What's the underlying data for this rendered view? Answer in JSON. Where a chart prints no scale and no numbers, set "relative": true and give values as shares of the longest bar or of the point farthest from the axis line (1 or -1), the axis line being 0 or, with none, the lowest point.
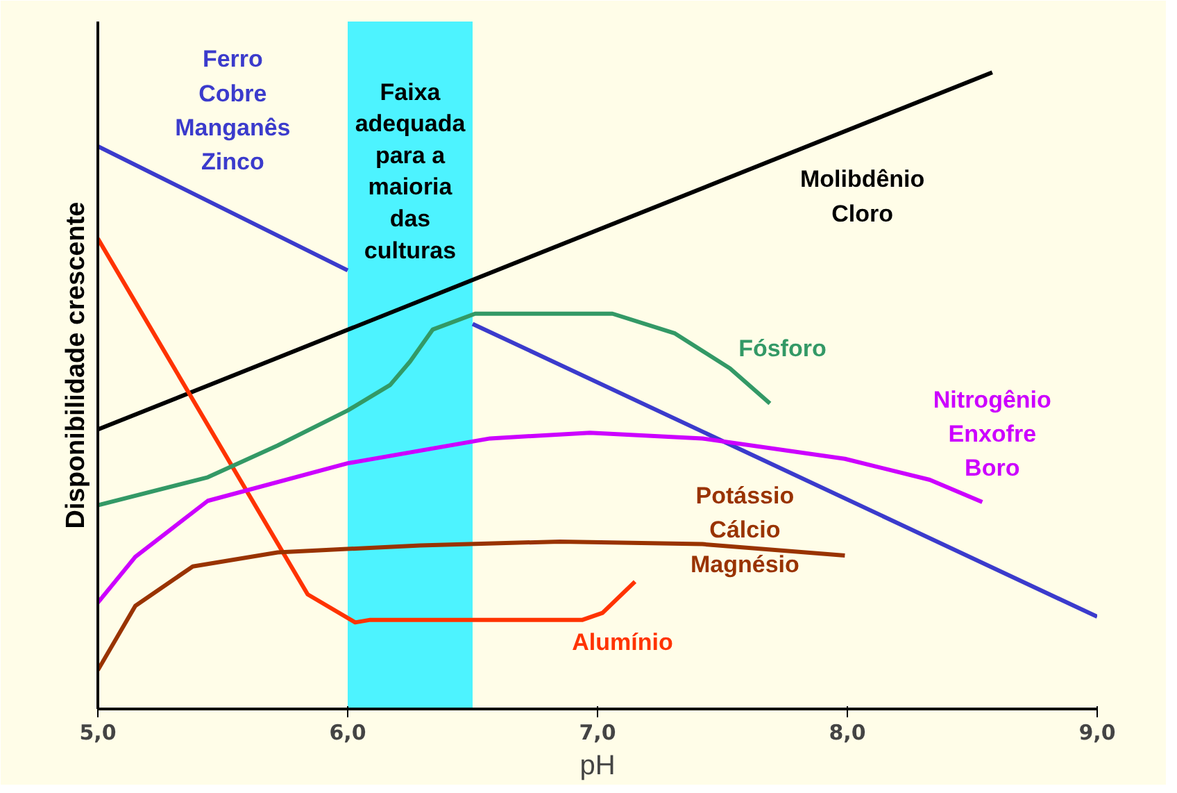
{
  "chart_data": {
    "type": "line",
    "relative": true,
    "xlabel": "pH",
    "ylabel": "Disponibilidade crescente",
    "xlim": [
      5,
      9
    ],
    "xticks": [
      {
        "value": 5,
        "label": "5,0"
      },
      {
        "value": 6,
        "label": "6,0"
      },
      {
        "value": 7,
        "label": "7,0"
      },
      {
        "value": 8,
        "label": "8,0"
      },
      {
        "value": 9,
        "label": "9,0"
      }
    ],
    "grid": false,
    "legend": false,
    "marker": "none",
    "line_style": "solid",
    "series": [
      {
        "name": "Ferro\nCobre\nManganês\nZinco",
        "color": "#3b3bcc",
        "x": [
          5.0,
          6.0,
          6.25,
          6.5,
          9.0
        ],
        "values": [
          0.884,
          0.689,
          null,
          0.605,
          0.145
        ]
      },
      {
        "name": "Molibdênio\nCloro",
        "color": "#000000",
        "x": [
          5.0,
          8.58
        ],
        "values": [
          0.439,
          1.0
        ]
      },
      {
        "name": "Alumínio",
        "color": "#ff3300",
        "x": [
          5.0,
          5.84,
          6.03,
          6.09,
          6.94,
          7.02,
          7.15
        ],
        "values": [
          0.739,
          0.18,
          0.136,
          0.14,
          0.14,
          0.151,
          0.2
        ]
      },
      {
        "name": "Fósforo",
        "color": "#339966",
        "x": [
          5.0,
          5.44,
          5.72,
          6.0,
          6.17,
          6.25,
          6.34,
          6.51,
          6.74,
          7.06,
          7.31,
          7.53,
          7.69
        ],
        "values": [
          0.32,
          0.364,
          0.414,
          0.469,
          0.509,
          0.546,
          0.596,
          0.621,
          0.621,
          0.621,
          0.59,
          0.535,
          0.48
        ]
      },
      {
        "name": "Nitrogênio\nEnxofre\nBoro",
        "color": "#cc00ff",
        "x": [
          5.0,
          5.15,
          5.44,
          6.0,
          6.57,
          6.97,
          7.42,
          7.99,
          8.33,
          8.54
        ],
        "values": [
          0.167,
          0.239,
          0.327,
          0.386,
          0.425,
          0.434,
          0.425,
          0.393,
          0.36,
          0.325
        ]
      },
      {
        "name": "Potássio\nCálcio\nMagnésio",
        "color": "#993300",
        "x": [
          5.0,
          5.15,
          5.38,
          5.72,
          6.29,
          6.85,
          7.42,
          7.99
        ],
        "values": [
          0.061,
          0.162,
          0.224,
          0.246,
          0.257,
          0.263,
          0.259,
          0.241
        ]
      }
    ],
    "bands": [
      {
        "axis": "x",
        "from": 6.0,
        "to": 6.5,
        "label": "Faixa\nadequada\npara a\nmaioria\ndas\nculturas",
        "color": "#4df3ff"
      }
    ]
  }
}
